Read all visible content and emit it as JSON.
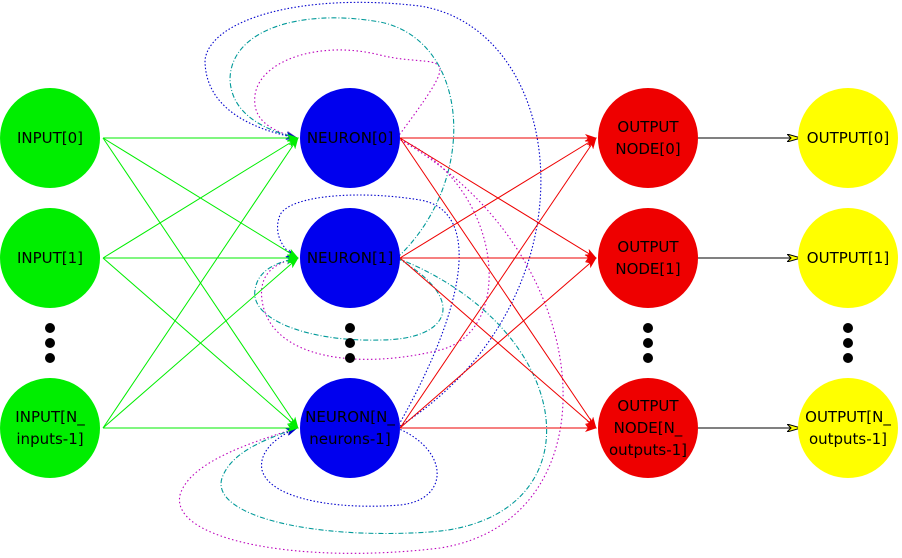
{
  "columns": [
    {
      "name": "input",
      "color": "#00ee00",
      "nodes": [
        {
          "id": "in0",
          "lines": [
            "INPUT[0]"
          ]
        },
        {
          "id": "in1",
          "lines": [
            "INPUT[1]"
          ]
        },
        {
          "id": "in2",
          "lines": [
            "INPUT[N_",
            "inputs-1]"
          ]
        }
      ]
    },
    {
      "name": "neuron",
      "color": "#0000ee",
      "nodes": [
        {
          "id": "ne0",
          "lines": [
            "NEURON[0]"
          ]
        },
        {
          "id": "ne1",
          "lines": [
            "NEURON[1]"
          ]
        },
        {
          "id": "ne2",
          "lines": [
            "NEURON[N_",
            "neurons-1]"
          ]
        }
      ]
    },
    {
      "name": "output-node",
      "color": "#ee0000",
      "nodes": [
        {
          "id": "on0",
          "lines": [
            "OUTPUT",
            "NODE[0]"
          ]
        },
        {
          "id": "on1",
          "lines": [
            "OUTPUT",
            "NODE[1]"
          ]
        },
        {
          "id": "on2",
          "lines": [
            "OUTPUT",
            "NODE[N_",
            "outputs-1]"
          ]
        }
      ]
    },
    {
      "name": "output",
      "color": "#ffff00",
      "nodes": [
        {
          "id": "out0",
          "lines": [
            "OUTPUT[0]"
          ]
        },
        {
          "id": "out1",
          "lines": [
            "OUTPUT[1]"
          ]
        },
        {
          "id": "out2",
          "lines": [
            "OUTPUT[N_",
            "outputs-1]"
          ]
        }
      ]
    }
  ],
  "edge_colors": {
    "input_to_neuron": "#00ee00",
    "neuron_to_output_node": "#ee0000",
    "output_node_to_output": "#000000",
    "recurrent_blue": "#0000cc",
    "recurrent_teal": "#009999",
    "recurrent_magenta": "#bb00bb"
  }
}
